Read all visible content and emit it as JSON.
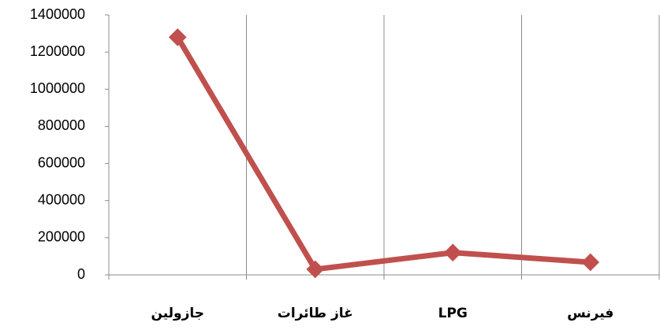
{
  "chart_data": {
    "type": "line",
    "categories": [
      "جازولين",
      "غاز طائرات",
      "LPG",
      "فيرنس"
    ],
    "series": [
      {
        "name": "Series1",
        "color": "#c0504d",
        "values": [
          1280000,
          30000,
          120000,
          68000
        ]
      }
    ],
    "ylim": [
      0,
      1400000
    ],
    "yticks": [
      0,
      200000,
      400000,
      600000,
      800000,
      1000000,
      1200000,
      1400000
    ],
    "grid": true
  }
}
